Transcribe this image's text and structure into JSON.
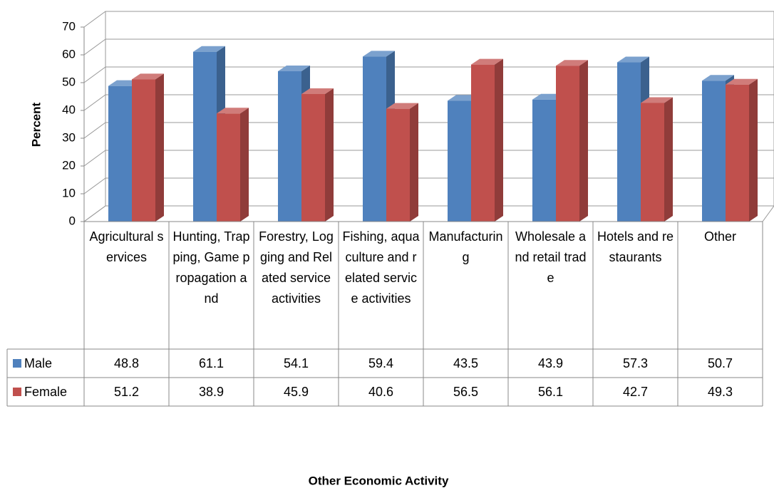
{
  "chart_data": {
    "type": "bar",
    "x_label": "Other Economic Activity",
    "y_label": "Percent",
    "categories": [
      "Agricultural services",
      "Hunting, Trapping, Game propagation and",
      "Forestry, Logging and Related service activities",
      "Fishing, aquaculture and related service activities",
      "Manufacturing",
      "Wholesale and retail trade",
      "Hotels and restaurants",
      "Other"
    ],
    "series": [
      {
        "name": "Male",
        "color": "#4f81bd",
        "values": [
          48.8,
          61.1,
          54.1,
          59.4,
          43.5,
          43.9,
          57.3,
          50.7
        ]
      },
      {
        "name": "Female",
        "color": "#c0504d",
        "values": [
          51.2,
          38.9,
          45.9,
          40.6,
          56.5,
          56.1,
          42.7,
          49.3
        ]
      }
    ],
    "ylim": [
      0,
      70
    ],
    "yticks": [
      0,
      10,
      20,
      30,
      40,
      50,
      60,
      70
    ],
    "grid": true
  }
}
